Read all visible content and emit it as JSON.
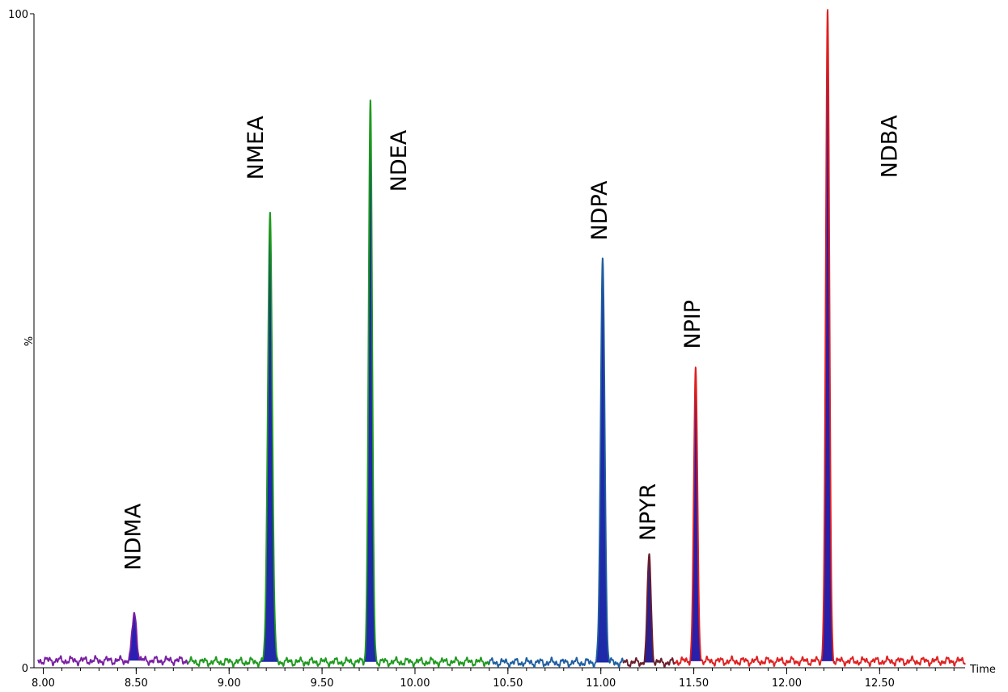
{
  "chart_data": {
    "type": "line",
    "title": "",
    "xlabel": "Time",
    "ylabel": "%",
    "xlim": [
      7.95,
      12.96
    ],
    "ylim": [
      0,
      100
    ],
    "x_ticks": [
      "8.00",
      "8.50",
      "9.00",
      "9.50",
      "10.00",
      "10.50",
      "11.00",
      "11.50",
      "12.00",
      "12.50"
    ],
    "y_ticks": [
      "0",
      "100"
    ],
    "grid": false,
    "legend": "none",
    "series": [
      {
        "color": "#7a1fa2",
        "fill": "#2a1fb0",
        "x_range": [
          7.97,
          8.78
        ],
        "baseline": 1.1,
        "peak_x": 8.49,
        "peak_y": 8.3,
        "width": 0.012
      },
      {
        "color": "#1f9a1f",
        "fill": "#1f2aa8",
        "x_range": [
          8.78,
          10.4
        ],
        "baseline": 0.9,
        "peaks": [
          {
            "x": 9.22,
            "y": 70.1,
            "width": 0.012
          },
          {
            "x": 9.76,
            "y": 86.7,
            "width": 0.01
          }
        ]
      },
      {
        "color": "#1f5fa0",
        "fill": "#1f2aa8",
        "x_range": [
          10.4,
          11.12
        ],
        "baseline": 0.8,
        "peak_x": 11.01,
        "peak_y": 62.8,
        "width": 0.011
      },
      {
        "color": "#6a1e2a",
        "fill": "#2a1f90",
        "x_range": [
          11.12,
          11.4
        ],
        "baseline": 0.8,
        "peak_x": 11.26,
        "peak_y": 17.4,
        "width": 0.01
      },
      {
        "color": "#e02020",
        "fill": "#2a1fa8",
        "x_range": [
          11.4,
          12.96
        ],
        "baseline": 1.0,
        "peaks": [
          {
            "x": 11.51,
            "y": 45.5,
            "width": 0.01
          },
          {
            "x": 12.22,
            "y": 100,
            "width": 0.01
          }
        ]
      }
    ],
    "annotations": [
      {
        "text": "NDMA",
        "x": 8.49,
        "y": 20.0
      },
      {
        "text": "NMEA",
        "x": 9.15,
        "y": 79.5
      },
      {
        "text": "NDEA",
        "x": 9.92,
        "y": 77.5
      },
      {
        "text": "NDPA",
        "x": 11.0,
        "y": 69.9
      },
      {
        "text": "NPYR",
        "x": 11.26,
        "y": 23.8
      },
      {
        "text": "NPIP",
        "x": 11.5,
        "y": 52.5
      },
      {
        "text": "NDBA",
        "x": 12.56,
        "y": 79.7
      }
    ]
  }
}
